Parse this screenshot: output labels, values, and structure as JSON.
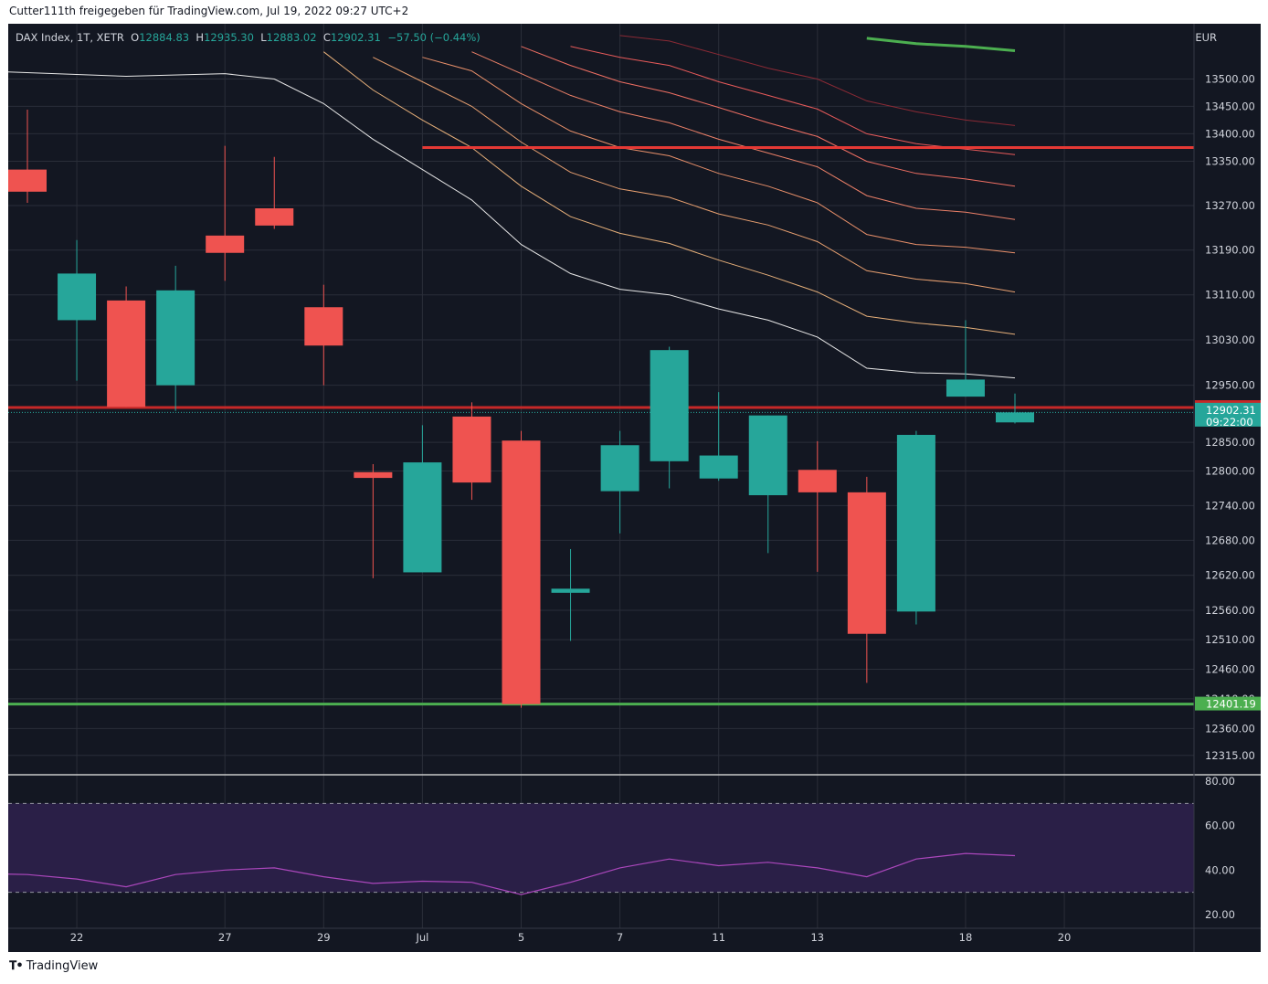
{
  "header": {
    "text": "Cutter111th freigegeben für TradingView.com, Jul 19, 2022 09:27 UTC+2"
  },
  "legend": {
    "symbol": "DAX Index, 1T, XETR",
    "open_label": "O",
    "open": "12884.83",
    "high_label": "H",
    "high": "12935.30",
    "low_label": "L",
    "low": "12883.02",
    "close_label": "C",
    "close": "12902.31",
    "change": "−57.50 (−0.44%)"
  },
  "currency": "EUR",
  "footer": {
    "logo_icon": "tradingview-logo-icon",
    "brand": "TradingView"
  },
  "colors": {
    "background": "#131722",
    "grid": "#2a2e39",
    "up": "#26a69a",
    "down": "#ef5350",
    "resistance": "#e53935",
    "support": "#4caf50",
    "rsi_line": "#ab47bc",
    "rsi_band": "#2a1f47"
  },
  "chart_data": [
    {
      "type": "candlestick",
      "y_scale": "log",
      "ylim": [
        12290,
        13560
      ],
      "y_ticks": [
        "13500.00",
        "13450.00",
        "13400.00",
        "13350.00",
        "13270.00",
        "13190.00",
        "13110.00",
        "13030.00",
        "12950.00",
        "12850.00",
        "12800.00",
        "12740.00",
        "12680.00",
        "12620.00",
        "12560.00",
        "12510.00",
        "12460.00",
        "12410.00",
        "12360.00",
        "12315.00"
      ],
      "x_ticks": [
        {
          "label": "22",
          "index": 1
        },
        {
          "label": "27",
          "index": 4
        },
        {
          "label": "29",
          "index": 6
        },
        {
          "label": "Jul",
          "index": 8
        },
        {
          "label": "5",
          "index": 10
        },
        {
          "label": "7",
          "index": 12
        },
        {
          "label": "11",
          "index": 14
        },
        {
          "label": "13",
          "index": 16
        },
        {
          "label": "18",
          "index": 19
        },
        {
          "label": "20",
          "index": 21
        }
      ],
      "candles": [
        {
          "index": 0,
          "o": 13335,
          "h": 13444,
          "l": 13275,
          "c": 13295
        },
        {
          "index": 1,
          "o": 13065,
          "h": 13208,
          "l": 12958,
          "c": 13148
        },
        {
          "index": 2,
          "o": 13100,
          "h": 13125,
          "l": 12912,
          "c": 12912
        },
        {
          "index": 3,
          "o": 12950,
          "h": 13162,
          "l": 12905,
          "c": 13118
        },
        {
          "index": 4,
          "o": 13216,
          "h": 13378,
          "l": 13135,
          "c": 13185
        },
        {
          "index": 5,
          "o": 13265,
          "h": 13358,
          "l": 13228,
          "c": 13234
        },
        {
          "index": 6,
          "o": 13088,
          "h": 13128,
          "l": 12950,
          "c": 13020
        },
        {
          "index": 7,
          "o": 12798,
          "h": 12812,
          "l": 12615,
          "c": 12788
        },
        {
          "index": 8,
          "o": 12625,
          "h": 12880,
          "l": 12625,
          "c": 12815
        },
        {
          "index": 9,
          "o": 12895,
          "h": 12920,
          "l": 12750,
          "c": 12780
        },
        {
          "index": 10,
          "o": 12853,
          "h": 12870,
          "l": 12395,
          "c": 12401
        },
        {
          "index": 11,
          "o": 12590,
          "h": 12665,
          "l": 12508,
          "c": 12597
        },
        {
          "index": 12,
          "o": 12765,
          "h": 12870,
          "l": 12692,
          "c": 12845
        },
        {
          "index": 13,
          "o": 12817,
          "h": 13018,
          "l": 12770,
          "c": 13012
        },
        {
          "index": 14,
          "o": 12787,
          "h": 12938,
          "l": 12783,
          "c": 12827
        },
        {
          "index": 15,
          "o": 12758,
          "h": 12897,
          "l": 12658,
          "c": 12897
        },
        {
          "index": 16,
          "o": 12802,
          "h": 12852,
          "l": 12626,
          "c": 12763
        },
        {
          "index": 17,
          "o": 12763,
          "h": 12790,
          "l": 12437,
          "c": 12520
        },
        {
          "index": 18,
          "o": 12558,
          "h": 12870,
          "l": 12536,
          "c": 12863
        },
        {
          "index": 19,
          "o": 12930,
          "h": 13065,
          "l": 12930,
          "c": 12960
        },
        {
          "index": 20,
          "o": 12884.83,
          "h": 12935.3,
          "l": 12883.02,
          "c": 12902.31
        }
      ],
      "ma_lines": [
        {
          "color": "#e8e8e8",
          "points": [
            [
              -1,
              13515
            ],
            [
              2,
              13505
            ],
            [
              4,
              13510
            ],
            [
              5,
              13500
            ],
            [
              6,
              13455
            ],
            [
              7,
              13390
            ],
            [
              8,
              13335
            ],
            [
              9,
              13280
            ],
            [
              10,
              13200
            ],
            [
              11,
              13148
            ],
            [
              12,
              13120
            ],
            [
              13,
              13110
            ],
            [
              14,
              13085
            ],
            [
              15,
              13065
            ],
            [
              16,
              13035
            ],
            [
              17,
              12980
            ],
            [
              18,
              12972
            ],
            [
              19,
              12970
            ],
            [
              20,
              12963
            ]
          ]
        },
        {
          "color": "#e7b07a",
          "points": [
            [
              6,
              13550
            ],
            [
              7,
              13480
            ],
            [
              8,
              13425
            ],
            [
              9,
              13375
            ],
            [
              10,
              13305
            ],
            [
              11,
              13250
            ],
            [
              12,
              13220
            ],
            [
              13,
              13202
            ],
            [
              14,
              13172
            ],
            [
              15,
              13145
            ],
            [
              16,
              13115
            ],
            [
              17,
              13072
            ],
            [
              18,
              13060
            ],
            [
              19,
              13052
            ],
            [
              20,
              13040
            ]
          ]
        },
        {
          "color": "#e8a070",
          "points": [
            [
              7,
              13540
            ],
            [
              8,
              13495
            ],
            [
              9,
              13450
            ],
            [
              10,
              13385
            ],
            [
              11,
              13330
            ],
            [
              12,
              13300
            ],
            [
              13,
              13285
            ],
            [
              14,
              13255
            ],
            [
              15,
              13235
            ],
            [
              16,
              13205
            ],
            [
              17,
              13153
            ],
            [
              18,
              13138
            ],
            [
              19,
              13130
            ],
            [
              20,
              13115
            ]
          ]
        },
        {
          "color": "#e9906a",
          "points": [
            [
              8,
              13540
            ],
            [
              9,
              13515
            ],
            [
              10,
              13455
            ],
            [
              11,
              13405
            ],
            [
              12,
              13375
            ],
            [
              13,
              13360
            ],
            [
              14,
              13328
            ],
            [
              15,
              13305
            ],
            [
              16,
              13275
            ],
            [
              17,
              13218
            ],
            [
              18,
              13200
            ],
            [
              19,
              13195
            ],
            [
              20,
              13185
            ]
          ]
        },
        {
          "color": "#ec8068",
          "points": [
            [
              9,
              13550
            ],
            [
              10,
              13510
            ],
            [
              11,
              13470
            ],
            [
              12,
              13440
            ],
            [
              13,
              13420
            ],
            [
              14,
              13390
            ],
            [
              15,
              13365
            ],
            [
              16,
              13340
            ],
            [
              17,
              13288
            ],
            [
              18,
              13265
            ],
            [
              19,
              13258
            ],
            [
              20,
              13245
            ]
          ]
        },
        {
          "color": "#ef6f63",
          "points": [
            [
              10,
              13560
            ],
            [
              11,
              13525
            ],
            [
              12,
              13495
            ],
            [
              13,
              13475
            ],
            [
              14,
              13448
            ],
            [
              15,
              13420
            ],
            [
              16,
              13395
            ],
            [
              17,
              13350
            ],
            [
              18,
              13328
            ],
            [
              19,
              13318
            ],
            [
              20,
              13305
            ]
          ]
        },
        {
          "color": "#e85a5a",
          "points": [
            [
              11,
              13560
            ],
            [
              12,
              13540
            ],
            [
              13,
              13525
            ],
            [
              14,
              13495
            ],
            [
              15,
              13470
            ],
            [
              16,
              13445
            ],
            [
              17,
              13400
            ],
            [
              18,
              13382
            ],
            [
              19,
              13372
            ],
            [
              20,
              13362
            ]
          ]
        },
        {
          "color": "#8b2a35",
          "points": [
            [
              12,
              13580
            ],
            [
              13,
              13570
            ],
            [
              14,
              13545
            ],
            [
              15,
              13520
            ],
            [
              16,
              13500
            ],
            [
              17,
              13460
            ],
            [
              18,
              13440
            ],
            [
              19,
              13425
            ],
            [
              20,
              13415
            ]
          ]
        },
        {
          "color": "#4caf50",
          "width": 3,
          "points": [
            [
              17,
              13575
            ],
            [
              18,
              13565
            ],
            [
              19,
              13560
            ],
            [
              20,
              13552
            ]
          ]
        }
      ],
      "h_lines": [
        {
          "price": 13375,
          "from_index": 8,
          "color": "#e53935",
          "width": 3,
          "label": ""
        },
        {
          "price": 12910.88,
          "from_index": -1,
          "color": "#c62828",
          "width": 3,
          "label": "12910.88",
          "label_bg": "#c62828"
        },
        {
          "price": 12401.19,
          "from_index": -1,
          "color": "#4caf50",
          "width": 3,
          "label": "12401.19",
          "label_bg": "#4caf50"
        }
      ],
      "last_price": {
        "price": 12902.31,
        "label": "12902.31",
        "time": "09:22:00",
        "color": "#26a69a"
      }
    },
    {
      "type": "line",
      "name": "",
      "ylim": [
        15,
        80
      ],
      "y_ticks": [
        "80.00",
        "60.00",
        "40.00",
        "20.00"
      ],
      "band": [
        30,
        70
      ],
      "values": [
        {
          "index": -1,
          "v": 38.5
        },
        {
          "index": 0,
          "v": 38
        },
        {
          "index": 1,
          "v": 36
        },
        {
          "index": 2,
          "v": 32.5
        },
        {
          "index": 3,
          "v": 38
        },
        {
          "index": 4,
          "v": 40
        },
        {
          "index": 5,
          "v": 41
        },
        {
          "index": 6,
          "v": 37
        },
        {
          "index": 7,
          "v": 34
        },
        {
          "index": 8,
          "v": 35
        },
        {
          "index": 9,
          "v": 34.5
        },
        {
          "index": 10,
          "v": 29
        },
        {
          "index": 11,
          "v": 34.5
        },
        {
          "index": 12,
          "v": 41
        },
        {
          "index": 13,
          "v": 45
        },
        {
          "index": 14,
          "v": 42
        },
        {
          "index": 15,
          "v": 43.5
        },
        {
          "index": 16,
          "v": 41
        },
        {
          "index": 17,
          "v": 37
        },
        {
          "index": 18,
          "v": 45
        },
        {
          "index": 19,
          "v": 47.5
        },
        {
          "index": 20,
          "v": 46.5
        }
      ]
    }
  ]
}
